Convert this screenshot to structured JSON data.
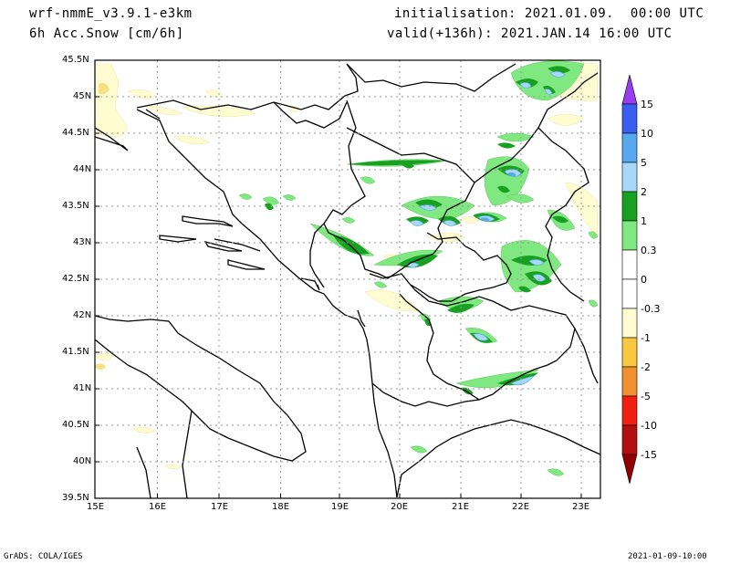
{
  "header": {
    "model": "wrf-nmmE_v3.9.1-e3km",
    "field": "6h Acc.Snow [cm/6h]",
    "init": "initialisation: 2021.01.09.  00:00 UTC",
    "valid": "valid(+136h): 2021.JAN.14 16:00 UTC"
  },
  "map": {
    "lon_ticks": [
      "15E",
      "16E",
      "17E",
      "18E",
      "19E",
      "20E",
      "21E",
      "22E",
      "23E"
    ],
    "lat_ticks": [
      "45.5N",
      "45N",
      "44.5N",
      "44N",
      "43.5N",
      "43N",
      "42.5N",
      "42N",
      "41.5N",
      "41N",
      "40.5N",
      "40N",
      "39.5N"
    ],
    "grid": "dotted"
  },
  "colorbar": {
    "labels": [
      "15",
      "10",
      "5",
      "2",
      "1",
      "0.3",
      "0",
      "-0.3",
      "-1",
      "-2",
      "-5",
      "-10",
      "-15"
    ],
    "colors": [
      "#5a1fd6",
      "#3c5ef0",
      "#58a8f0",
      "#a8d8f8",
      "#18a020",
      "#80e880",
      "#ffffff",
      "#fefcd0",
      "#f8e080",
      "#f0c030",
      "#f09030",
      "#f02010",
      "#b01010",
      "#900000"
    ]
  },
  "footer": {
    "left": "GrADS: COLA/IGES",
    "right": "2021-01-09-10:00"
  }
}
